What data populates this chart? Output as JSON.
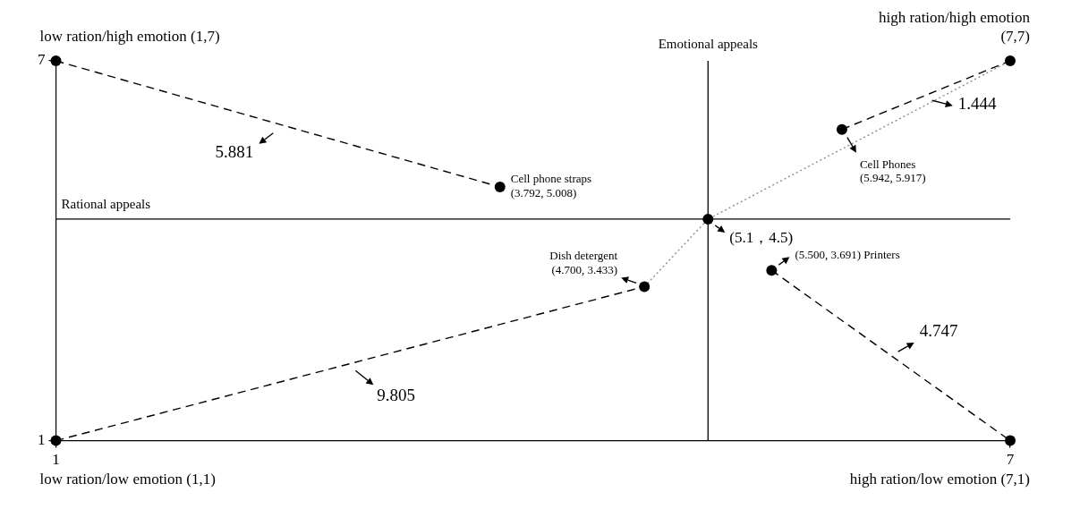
{
  "chart_data": {
    "type": "scatter",
    "xlabel": "Rational appeals",
    "ylabel": "Emotional appeals",
    "xlim": [
      1,
      7
    ],
    "ylim": [
      1,
      7
    ],
    "xticks": [
      1,
      7
    ],
    "yticks": [
      1,
      7
    ],
    "ref_lines": [
      {
        "axis": "x",
        "value": 5.1,
        "color": "#000000"
      },
      {
        "axis": "y",
        "value": 4.5,
        "color": "#000000"
      }
    ],
    "series": [
      {
        "type": "line",
        "x": [
          1,
          3.792
        ],
        "values": [
          7,
          5.008
        ],
        "color": "#000000",
        "line_style": "dashed",
        "marker": "none"
      },
      {
        "type": "line",
        "x": [
          1,
          4.7
        ],
        "values": [
          1,
          3.433
        ],
        "color": "#000000",
        "line_style": "dashed",
        "marker": "none"
      },
      {
        "type": "line",
        "x": [
          4.7,
          5.1,
          7
        ],
        "values": [
          3.433,
          4.5,
          7
        ],
        "color": "#8c8c8c",
        "line_style": "dotted",
        "marker": "none"
      },
      {
        "type": "line",
        "x": [
          5.942,
          7
        ],
        "values": [
          5.917,
          7
        ],
        "color": "#000000",
        "line_style": "dashed",
        "marker": "none"
      },
      {
        "type": "line",
        "x": [
          5.5,
          7
        ],
        "values": [
          3.691,
          1
        ],
        "color": "#000000",
        "line_style": "dashed",
        "marker": "none"
      },
      {
        "type": "scatter",
        "x": [
          1,
          7,
          1,
          7,
          3.792,
          5.942,
          4.7,
          5.5,
          5.1
        ],
        "values": [
          7,
          7,
          1,
          1,
          5.008,
          5.917,
          3.433,
          3.691,
          4.5
        ],
        "color": "#000000",
        "marker": "circle"
      }
    ],
    "annotations": [
      {
        "text": "low ration/high emotion (1,7)",
        "x": 1,
        "y": 7
      },
      {
        "text": "high ration/high emotion\n(7,7)",
        "x": 7,
        "y": 7
      },
      {
        "text": "low ration/low emotion (1,1)",
        "x": 1,
        "y": 1
      },
      {
        "text": "high ration/low emotion (7,1)",
        "x": 7,
        "y": 1
      },
      {
        "text": "Cell phone straps\n(3.792, 5.008)",
        "x": 3.792,
        "y": 5.008
      },
      {
        "text": "Cell Phones\n(5.942, 5.917)",
        "x": 5.942,
        "y": 5.917
      },
      {
        "text": "Dish detergent\n(4.700, 3.433)",
        "x": 4.7,
        "y": 3.433
      },
      {
        "text": "(5.500, 3.691) Printers",
        "x": 5.5,
        "y": 3.691
      },
      {
        "text": "(5.1，4.5)",
        "x": 5.1,
        "y": 4.5
      },
      {
        "text": "5.881",
        "x": 2.4,
        "y": 6.0
      },
      {
        "text": "1.444",
        "x": 6.47,
        "y": 6.46
      },
      {
        "text": "9.805",
        "x": 2.85,
        "y": 2.22
      },
      {
        "text": "4.747",
        "x": 6.25,
        "y": 2.35
      }
    ]
  }
}
